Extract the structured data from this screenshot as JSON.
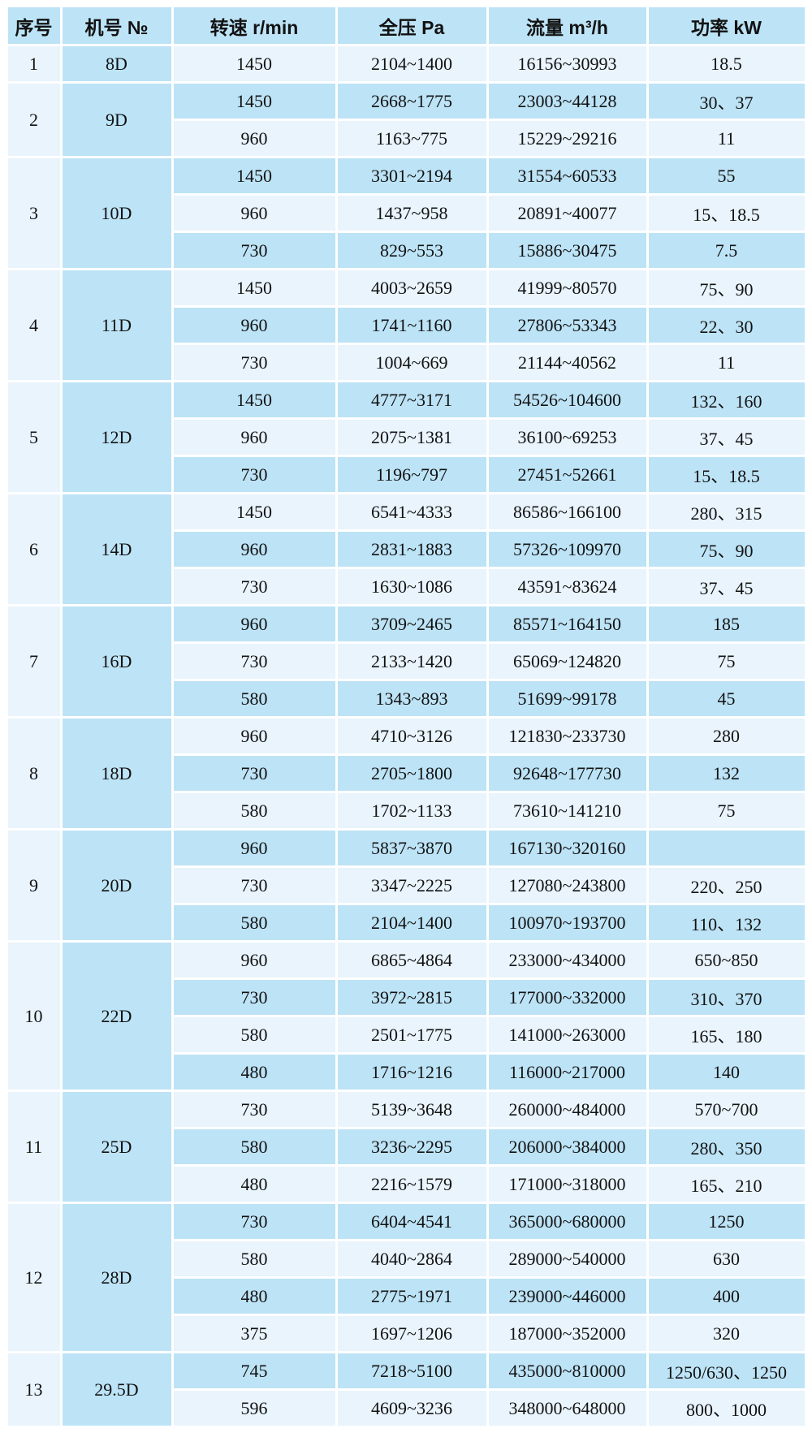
{
  "colors": {
    "row_dark": "#bde3f6",
    "row_light": "#e9f4fc",
    "grid_line": "#ffffff",
    "text": "#121212",
    "page_background": "#ffffff"
  },
  "chart_data": {
    "type": "table",
    "title": "",
    "columns": [
      "序号",
      "机号 №",
      "转速 r/min",
      "全压 Pa",
      "流量 m³/h",
      "功率 kW"
    ],
    "groups": [
      {
        "serial": "1",
        "model": "8D",
        "rows": [
          [
            "1450",
            "2104~1400",
            "16156~30993",
            "18.5"
          ]
        ]
      },
      {
        "serial": "2",
        "model": "9D",
        "rows": [
          [
            "1450",
            "2668~1775",
            "23003~44128",
            "30、37"
          ],
          [
            "960",
            "1163~775",
            "15229~29216",
            "11"
          ]
        ]
      },
      {
        "serial": "3",
        "model": "10D",
        "rows": [
          [
            "1450",
            "3301~2194",
            "31554~60533",
            "55"
          ],
          [
            "960",
            "1437~958",
            "20891~40077",
            "15、18.5"
          ],
          [
            "730",
            "829~553",
            "15886~30475",
            "7.5"
          ]
        ]
      },
      {
        "serial": "4",
        "model": "11D",
        "rows": [
          [
            "1450",
            "4003~2659",
            "41999~80570",
            "75、90"
          ],
          [
            "960",
            "1741~1160",
            "27806~53343",
            "22、30"
          ],
          [
            "730",
            "1004~669",
            "21144~40562",
            "11"
          ]
        ]
      },
      {
        "serial": "5",
        "model": "12D",
        "rows": [
          [
            "1450",
            "4777~3171",
            "54526~104600",
            "132、160"
          ],
          [
            "960",
            "2075~1381",
            "36100~69253",
            "37、45"
          ],
          [
            "730",
            "1196~797",
            "27451~52661",
            "15、18.5"
          ]
        ]
      },
      {
        "serial": "6",
        "model": "14D",
        "rows": [
          [
            "1450",
            "6541~4333",
            "86586~166100",
            "280、315"
          ],
          [
            "960",
            "2831~1883",
            "57326~109970",
            "75、90"
          ],
          [
            "730",
            "1630~1086",
            "43591~83624",
            "37、45"
          ]
        ]
      },
      {
        "serial": "7",
        "model": "16D",
        "rows": [
          [
            "960",
            "3709~2465",
            "85571~164150",
            "185"
          ],
          [
            "730",
            "2133~1420",
            "65069~124820",
            "75"
          ],
          [
            "580",
            "1343~893",
            "51699~99178",
            "45"
          ]
        ]
      },
      {
        "serial": "8",
        "model": "18D",
        "rows": [
          [
            "960",
            "4710~3126",
            "121830~233730",
            "280"
          ],
          [
            "730",
            "2705~1800",
            "92648~177730",
            "132"
          ],
          [
            "580",
            "1702~1133",
            "73610~141210",
            "75"
          ]
        ]
      },
      {
        "serial": "9",
        "model": "20D",
        "rows": [
          [
            "960",
            "5837~3870",
            "167130~320160",
            ""
          ],
          [
            "730",
            "3347~2225",
            "127080~243800",
            "220、250"
          ],
          [
            "580",
            "2104~1400",
            "100970~193700",
            "110、132"
          ]
        ]
      },
      {
        "serial": "10",
        "model": "22D",
        "rows": [
          [
            "960",
            "6865~4864",
            "233000~434000",
            "650~850"
          ],
          [
            "730",
            "3972~2815",
            "177000~332000",
            "310、370"
          ],
          [
            "580",
            "2501~1775",
            "141000~263000",
            "165、180"
          ],
          [
            "480",
            "1716~1216",
            "116000~217000",
            "140"
          ]
        ]
      },
      {
        "serial": "11",
        "model": "25D",
        "rows": [
          [
            "730",
            "5139~3648",
            "260000~484000",
            "570~700"
          ],
          [
            "580",
            "3236~2295",
            "206000~384000",
            "280、350"
          ],
          [
            "480",
            "2216~1579",
            "171000~318000",
            "165、210"
          ]
        ]
      },
      {
        "serial": "12",
        "model": "28D",
        "rows": [
          [
            "730",
            "6404~4541",
            "365000~680000",
            "1250"
          ],
          [
            "580",
            "4040~2864",
            "289000~540000",
            "630"
          ],
          [
            "480",
            "2775~1971",
            "239000~446000",
            "400"
          ],
          [
            "375",
            "1697~1206",
            "187000~352000",
            "320"
          ]
        ]
      },
      {
        "serial": "13",
        "model": "29.5D",
        "rows": [
          [
            "745",
            "7218~5100",
            "435000~810000",
            "1250/630、1250"
          ],
          [
            "596",
            "4609~3236",
            "348000~648000",
            "800、1000"
          ]
        ]
      }
    ]
  }
}
